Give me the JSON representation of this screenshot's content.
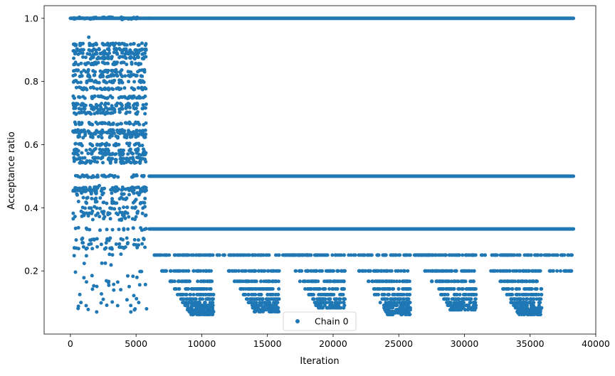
{
  "chart_data": {
    "type": "scatter",
    "title": "",
    "xlabel": "Iteration",
    "ylabel": "Acceptance ratio",
    "xlim": [
      -2000,
      40000
    ],
    "ylim": [
      0.0,
      1.04
    ],
    "xticks": [
      0,
      5000,
      10000,
      15000,
      20000,
      25000,
      30000,
      35000,
      40000
    ],
    "xtick_labels": [
      "0",
      "5000",
      "10000",
      "15000",
      "20000",
      "25000",
      "30000",
      "35000",
      "40000"
    ],
    "yticks": [
      0.2,
      0.4,
      0.6,
      0.8,
      1.0
    ],
    "ytick_labels": [
      "0.2",
      "0.4",
      "0.6",
      "0.8",
      "1.0"
    ],
    "grid": false,
    "legend": {
      "position": "lower center",
      "entries": [
        "Chain 0"
      ]
    },
    "series": [
      {
        "name": "Chain 0",
        "color": "#1f77b4",
        "marker": "point",
        "n_iterations": 38300,
        "phases": [
          {
            "x_range": [
              0,
              6000
            ],
            "levels": [
              1.0,
              0.917,
              0.9,
              0.889,
              0.875,
              0.857,
              0.833,
              0.818,
              0.8,
              0.778,
              0.75,
              0.727,
              0.714,
              0.7,
              0.667,
              0.643,
              0.636,
              0.625,
              0.6,
              0.583,
              0.571,
              0.556,
              0.545,
              0.5,
              0.462,
              0.455,
              0.444,
              0.429,
              0.417,
              0.4,
              0.385,
              0.375,
              0.364,
              0.333,
              0.3,
              0.286,
              0.273,
              0.25,
              0.222,
              0.2,
              0.182,
              0.167,
              0.154,
              0.143,
              0.125,
              0.111,
              0.1,
              0.091,
              0.077
            ],
            "sparse_outliers": [
              [
                1400,
                0.94
              ],
              [
                2200,
                0.47
              ],
              [
                800,
                0.1
              ],
              [
                1200,
                0.09
              ],
              [
                2000,
                0.07
              ],
              [
                2500,
                0.11
              ],
              [
                3600,
                0.09
              ],
              [
                4600,
                0.07
              ],
              [
                5200,
                0.1
              ],
              [
                5800,
                0.08
              ]
            ]
          },
          {
            "x_range": [
              6000,
              38300
            ],
            "levels": [
              1.0,
              0.5,
              0.333,
              0.25,
              0.2,
              0.167,
              0.143,
              0.125,
              0.111,
              0.1,
              0.091,
              0.083,
              0.077,
              0.071,
              0.067,
              0.062
            ],
            "dense_bands": [
              [
                1.0,
                6000,
                38300
              ],
              [
                0.5,
                6000,
                38300
              ],
              [
                0.333,
                6000,
                38300
              ]
            ],
            "sawtooth_cycles": [
              {
                "x_range": [
                  6000,
                  11000
                ],
                "min_y": 0.055
              },
              {
                "x_range": [
                  11000,
                  16000
                ],
                "min_y": 0.07
              },
              {
                "x_range": [
                  16000,
                  21000
                ],
                "min_y": 0.08
              },
              {
                "x_range": [
                  21000,
                  26000
                ],
                "min_y": 0.06
              },
              {
                "x_range": [
                  26000,
                  31000
                ],
                "min_y": 0.075
              },
              {
                "x_range": [
                  31000,
                  36000
                ],
                "min_y": 0.06
              },
              {
                "x_range": [
                  36000,
                  38300
                ],
                "min_y": 0.2
              }
            ]
          }
        ]
      }
    ]
  }
}
